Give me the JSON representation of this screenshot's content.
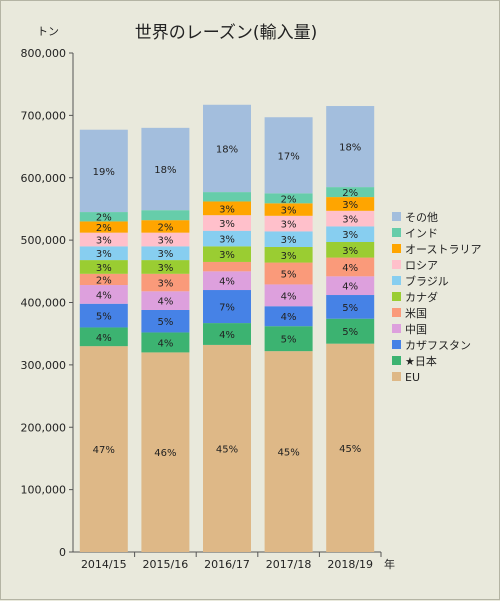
{
  "chart_data": {
    "type": "bar",
    "stacked": true,
    "title": "世界のレーズン(輸入量)",
    "ylabel": "トン",
    "xlabel": "年",
    "ylim": [
      0,
      800000
    ],
    "yticks": [
      "0",
      "100,000",
      "200,000",
      "300,000",
      "400,000",
      "500,000",
      "600,000",
      "700,000",
      "800,000"
    ],
    "grid": false,
    "legend_position": "right",
    "categories": [
      "2014/15",
      "2015/16",
      "2016/17",
      "2017/18",
      "2018/19"
    ],
    "series": [
      {
        "name": "EU",
        "color": "#deb887",
        "values": [
          330000,
          320000,
          332000,
          322000,
          334000
        ],
        "labels": [
          "47%",
          "46%",
          "45%",
          "45%",
          "45%"
        ]
      },
      {
        "name": "★日本",
        "color": "#3cb371",
        "values": [
          30000,
          32000,
          35000,
          40000,
          40000
        ],
        "labels": [
          "4%",
          "4%",
          "4%",
          "5%",
          "5%"
        ]
      },
      {
        "name": "カザフスタン",
        "color": "#4682e6",
        "values": [
          38000,
          36000,
          53000,
          32000,
          38000
        ],
        "labels": [
          "5%",
          "5%",
          "7%",
          "4%",
          "5%"
        ]
      },
      {
        "name": "中国",
        "color": "#dda0dd",
        "values": [
          30000,
          30000,
          30000,
          35000,
          30000
        ],
        "labels": [
          "4%",
          "4%",
          "4%",
          "4%",
          "4%"
        ]
      },
      {
        "name": "米国",
        "color": "#fa9a7a",
        "values": [
          18000,
          28000,
          15000,
          35000,
          30000
        ],
        "labels": [
          "2%",
          "3%",
          "",
          "5%",
          "4%"
        ]
      },
      {
        "name": "カナダ",
        "color": "#9acd32",
        "values": [
          22000,
          22000,
          25000,
          25000,
          25000
        ],
        "labels": [
          "3%",
          "3%",
          "3%",
          "3%",
          "3%"
        ]
      },
      {
        "name": "ブラジル",
        "color": "#87cef0",
        "values": [
          22000,
          22000,
          25000,
          25000,
          25000
        ],
        "labels": [
          "3%",
          "3%",
          "3%",
          "3%",
          "3%"
        ]
      },
      {
        "name": "ロシア",
        "color": "#ffc0cb",
        "values": [
          22000,
          22000,
          25000,
          25000,
          25000
        ],
        "labels": [
          "3%",
          "3%",
          "3%",
          "3%",
          "3%"
        ]
      },
      {
        "name": "オーストラリア",
        "color": "#ffa500",
        "values": [
          18000,
          20000,
          22000,
          20000,
          22000
        ],
        "labels": [
          "2%",
          "2%",
          "3%",
          "3%",
          "3%"
        ]
      },
      {
        "name": "インド",
        "color": "#66cdaa",
        "values": [
          15000,
          16000,
          15000,
          16000,
          16000
        ],
        "labels": [
          "2%",
          "",
          "",
          "2%",
          "2%"
        ]
      },
      {
        "name": "その他",
        "color": "#a3bedd",
        "values": [
          132000,
          132000,
          140000,
          122000,
          130000
        ],
        "labels": [
          "19%",
          "18%",
          "18%",
          "17%",
          "18%"
        ]
      }
    ]
  }
}
